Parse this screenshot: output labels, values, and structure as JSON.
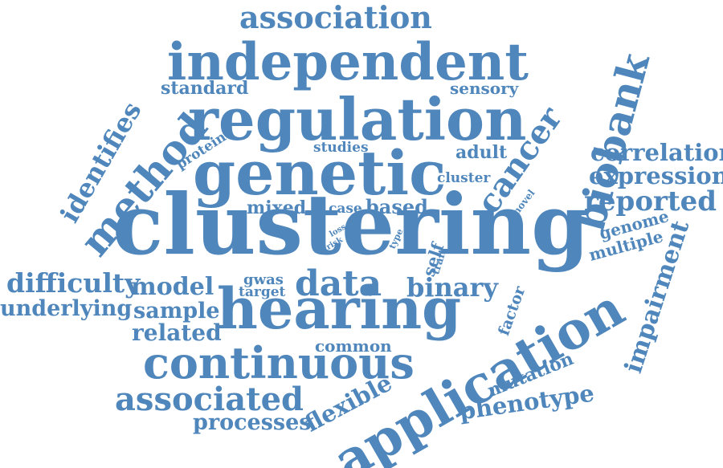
{
  "cloud": {
    "color": "#4f86bb",
    "words": [
      "clustering",
      "hearing",
      "genetic",
      "regulation",
      "independent",
      "application",
      "association",
      "biobank",
      "method",
      "cancer",
      "continuous",
      "associated",
      "identifies",
      "difficulty",
      "underlying",
      "model",
      "sample",
      "related",
      "data",
      "binary",
      "correlation",
      "expression",
      "reported",
      "impairment",
      "phenotype",
      "processes",
      "flexible",
      "mutation",
      "standard",
      "sensory",
      "protein",
      "studies",
      "adult",
      "cluster",
      "mixed",
      "case",
      "based",
      "genome",
      "multiple",
      "gwas",
      "target",
      "self",
      "trait",
      "factor",
      "common",
      "novel",
      "loss",
      "risk",
      "type"
    ]
  }
}
